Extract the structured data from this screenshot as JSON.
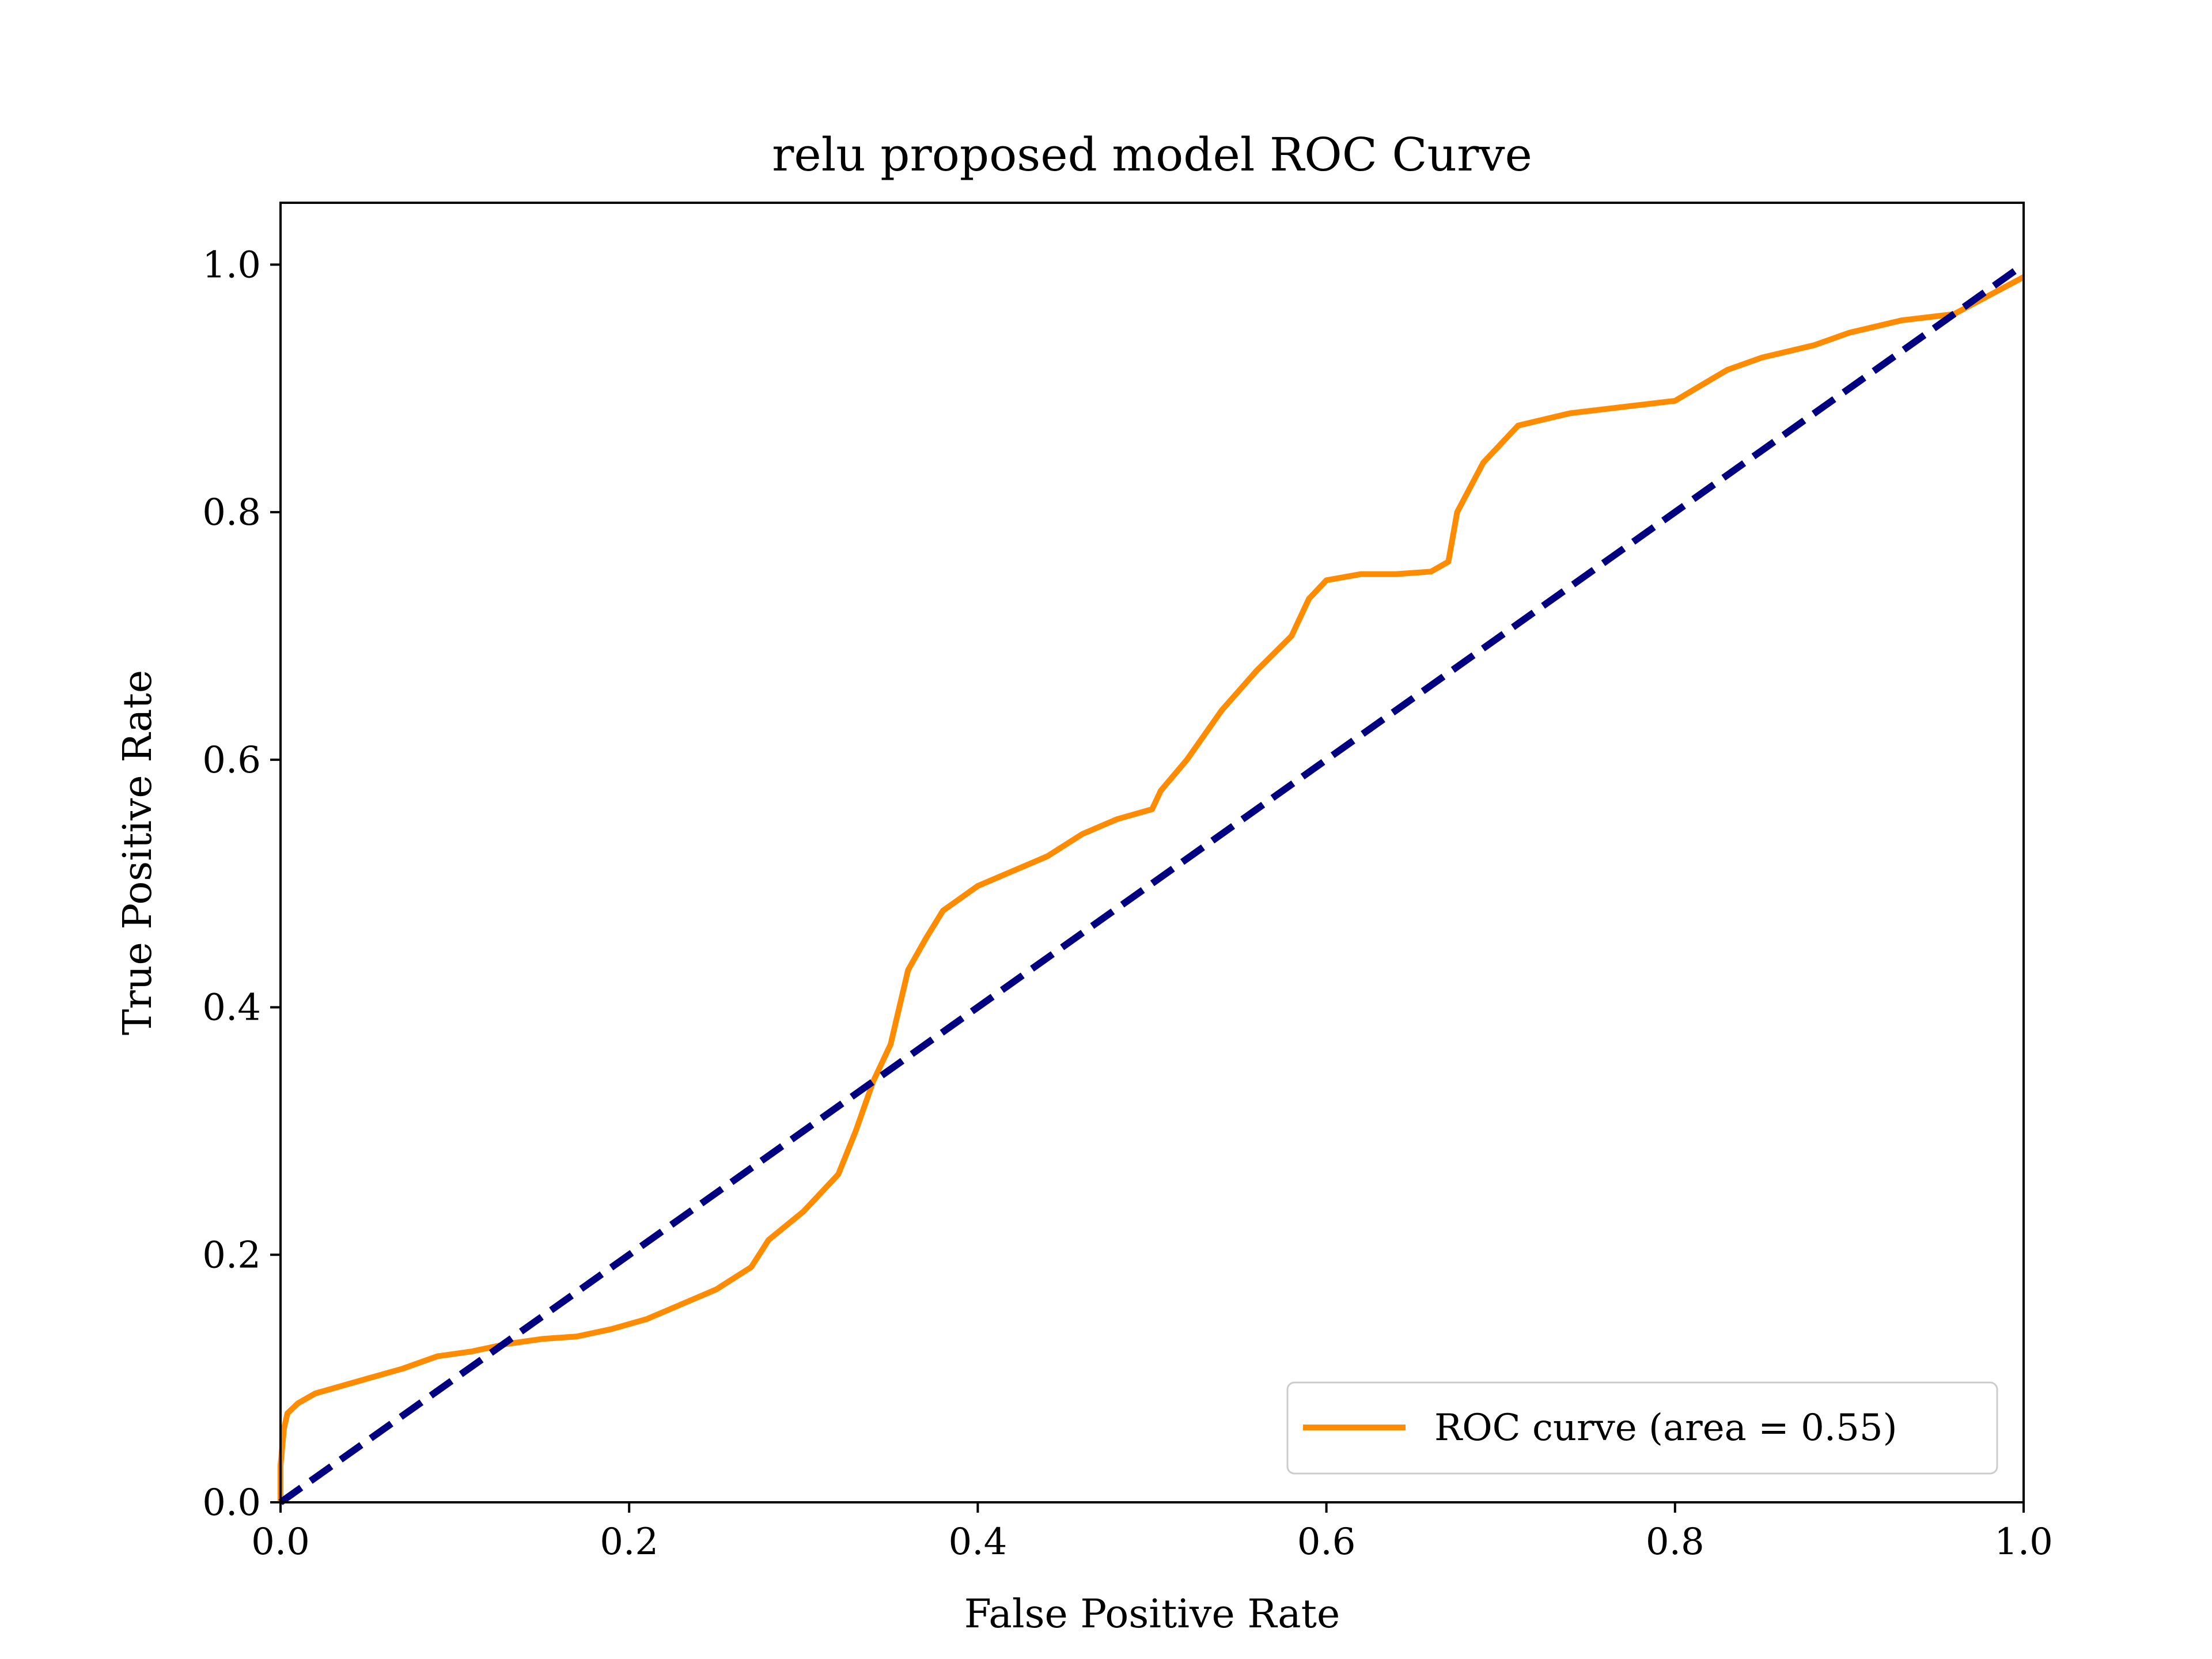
{
  "chart_data": {
    "type": "line",
    "title": "relu proposed model ROC Curve",
    "xlabel": "False Positive Rate",
    "ylabel": "True Positive Rate",
    "xlim": [
      0.0,
      1.0
    ],
    "ylim": [
      0.0,
      1.05
    ],
    "xticks": [
      "0.0",
      "0.2",
      "0.4",
      "0.6",
      "0.8",
      "1.0"
    ],
    "yticks": [
      "0.0",
      "0.2",
      "0.4",
      "0.6",
      "0.8",
      "1.0"
    ],
    "grid": false,
    "legend": {
      "placement": "lower-right"
    },
    "series": [
      {
        "name": "ROC curve (area = 0.55)",
        "color": "#ff8c00",
        "style": "solid",
        "x": [
          0.0,
          0.0,
          0.002,
          0.004,
          0.01,
          0.02,
          0.03,
          0.05,
          0.07,
          0.09,
          0.11,
          0.13,
          0.15,
          0.17,
          0.19,
          0.21,
          0.23,
          0.25,
          0.27,
          0.28,
          0.3,
          0.32,
          0.33,
          0.34,
          0.35,
          0.355,
          0.36,
          0.37,
          0.38,
          0.4,
          0.42,
          0.44,
          0.46,
          0.48,
          0.5,
          0.505,
          0.52,
          0.54,
          0.56,
          0.58,
          0.59,
          0.6,
          0.62,
          0.64,
          0.66,
          0.67,
          0.675,
          0.69,
          0.71,
          0.74,
          0.77,
          0.8,
          0.83,
          0.85,
          0.88,
          0.9,
          0.93,
          0.96,
          0.98,
          1.0
        ],
        "y": [
          0.0,
          0.03,
          0.06,
          0.072,
          0.08,
          0.088,
          0.092,
          0.1,
          0.108,
          0.118,
          0.122,
          0.128,
          0.132,
          0.134,
          0.14,
          0.148,
          0.16,
          0.172,
          0.19,
          0.212,
          0.235,
          0.265,
          0.3,
          0.34,
          0.37,
          0.4,
          0.43,
          0.455,
          0.478,
          0.498,
          0.51,
          0.522,
          0.54,
          0.552,
          0.56,
          0.575,
          0.6,
          0.64,
          0.672,
          0.7,
          0.73,
          0.745,
          0.75,
          0.75,
          0.752,
          0.76,
          0.8,
          0.84,
          0.87,
          0.88,
          0.885,
          0.89,
          0.915,
          0.925,
          0.935,
          0.945,
          0.955,
          0.96,
          0.975,
          0.99
        ]
      },
      {
        "name": "",
        "color": "#000080",
        "style": "dashed",
        "x": [
          0.0,
          1.0
        ],
        "y": [
          0.0,
          1.0
        ]
      }
    ]
  }
}
